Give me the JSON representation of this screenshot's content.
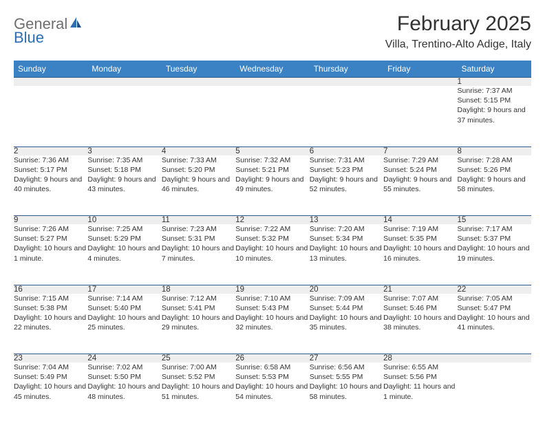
{
  "logo": {
    "part1": "General",
    "part2": "Blue"
  },
  "title": "February 2025",
  "location": "Villa, Trentino-Alto Adige, Italy",
  "colors": {
    "header_bg": "#3b82c4",
    "header_text": "#ffffff",
    "daynum_bg": "#eeeeee",
    "row_border": "#2f5a8a",
    "logo_gray": "#6e6e6e",
    "logo_blue": "#2a6fb5",
    "text": "#333333",
    "page_bg": "#ffffff"
  },
  "weekdays": [
    "Sunday",
    "Monday",
    "Tuesday",
    "Wednesday",
    "Thursday",
    "Friday",
    "Saturday"
  ],
  "weeks": [
    [
      null,
      null,
      null,
      null,
      null,
      null,
      {
        "n": "1",
        "sr": "Sunrise: 7:37 AM",
        "ss": "Sunset: 5:15 PM",
        "dl": "Daylight: 9 hours and 37 minutes."
      }
    ],
    [
      {
        "n": "2",
        "sr": "Sunrise: 7:36 AM",
        "ss": "Sunset: 5:17 PM",
        "dl": "Daylight: 9 hours and 40 minutes."
      },
      {
        "n": "3",
        "sr": "Sunrise: 7:35 AM",
        "ss": "Sunset: 5:18 PM",
        "dl": "Daylight: 9 hours and 43 minutes."
      },
      {
        "n": "4",
        "sr": "Sunrise: 7:33 AM",
        "ss": "Sunset: 5:20 PM",
        "dl": "Daylight: 9 hours and 46 minutes."
      },
      {
        "n": "5",
        "sr": "Sunrise: 7:32 AM",
        "ss": "Sunset: 5:21 PM",
        "dl": "Daylight: 9 hours and 49 minutes."
      },
      {
        "n": "6",
        "sr": "Sunrise: 7:31 AM",
        "ss": "Sunset: 5:23 PM",
        "dl": "Daylight: 9 hours and 52 minutes."
      },
      {
        "n": "7",
        "sr": "Sunrise: 7:29 AM",
        "ss": "Sunset: 5:24 PM",
        "dl": "Daylight: 9 hours and 55 minutes."
      },
      {
        "n": "8",
        "sr": "Sunrise: 7:28 AM",
        "ss": "Sunset: 5:26 PM",
        "dl": "Daylight: 9 hours and 58 minutes."
      }
    ],
    [
      {
        "n": "9",
        "sr": "Sunrise: 7:26 AM",
        "ss": "Sunset: 5:27 PM",
        "dl": "Daylight: 10 hours and 1 minute."
      },
      {
        "n": "10",
        "sr": "Sunrise: 7:25 AM",
        "ss": "Sunset: 5:29 PM",
        "dl": "Daylight: 10 hours and 4 minutes."
      },
      {
        "n": "11",
        "sr": "Sunrise: 7:23 AM",
        "ss": "Sunset: 5:31 PM",
        "dl": "Daylight: 10 hours and 7 minutes."
      },
      {
        "n": "12",
        "sr": "Sunrise: 7:22 AM",
        "ss": "Sunset: 5:32 PM",
        "dl": "Daylight: 10 hours and 10 minutes."
      },
      {
        "n": "13",
        "sr": "Sunrise: 7:20 AM",
        "ss": "Sunset: 5:34 PM",
        "dl": "Daylight: 10 hours and 13 minutes."
      },
      {
        "n": "14",
        "sr": "Sunrise: 7:19 AM",
        "ss": "Sunset: 5:35 PM",
        "dl": "Daylight: 10 hours and 16 minutes."
      },
      {
        "n": "15",
        "sr": "Sunrise: 7:17 AM",
        "ss": "Sunset: 5:37 PM",
        "dl": "Daylight: 10 hours and 19 minutes."
      }
    ],
    [
      {
        "n": "16",
        "sr": "Sunrise: 7:15 AM",
        "ss": "Sunset: 5:38 PM",
        "dl": "Daylight: 10 hours and 22 minutes."
      },
      {
        "n": "17",
        "sr": "Sunrise: 7:14 AM",
        "ss": "Sunset: 5:40 PM",
        "dl": "Daylight: 10 hours and 25 minutes."
      },
      {
        "n": "18",
        "sr": "Sunrise: 7:12 AM",
        "ss": "Sunset: 5:41 PM",
        "dl": "Daylight: 10 hours and 29 minutes."
      },
      {
        "n": "19",
        "sr": "Sunrise: 7:10 AM",
        "ss": "Sunset: 5:43 PM",
        "dl": "Daylight: 10 hours and 32 minutes."
      },
      {
        "n": "20",
        "sr": "Sunrise: 7:09 AM",
        "ss": "Sunset: 5:44 PM",
        "dl": "Daylight: 10 hours and 35 minutes."
      },
      {
        "n": "21",
        "sr": "Sunrise: 7:07 AM",
        "ss": "Sunset: 5:46 PM",
        "dl": "Daylight: 10 hours and 38 minutes."
      },
      {
        "n": "22",
        "sr": "Sunrise: 7:05 AM",
        "ss": "Sunset: 5:47 PM",
        "dl": "Daylight: 10 hours and 41 minutes."
      }
    ],
    [
      {
        "n": "23",
        "sr": "Sunrise: 7:04 AM",
        "ss": "Sunset: 5:49 PM",
        "dl": "Daylight: 10 hours and 45 minutes."
      },
      {
        "n": "24",
        "sr": "Sunrise: 7:02 AM",
        "ss": "Sunset: 5:50 PM",
        "dl": "Daylight: 10 hours and 48 minutes."
      },
      {
        "n": "25",
        "sr": "Sunrise: 7:00 AM",
        "ss": "Sunset: 5:52 PM",
        "dl": "Daylight: 10 hours and 51 minutes."
      },
      {
        "n": "26",
        "sr": "Sunrise: 6:58 AM",
        "ss": "Sunset: 5:53 PM",
        "dl": "Daylight: 10 hours and 54 minutes."
      },
      {
        "n": "27",
        "sr": "Sunrise: 6:56 AM",
        "ss": "Sunset: 5:55 PM",
        "dl": "Daylight: 10 hours and 58 minutes."
      },
      {
        "n": "28",
        "sr": "Sunrise: 6:55 AM",
        "ss": "Sunset: 5:56 PM",
        "dl": "Daylight: 11 hours and 1 minute."
      },
      null
    ]
  ]
}
